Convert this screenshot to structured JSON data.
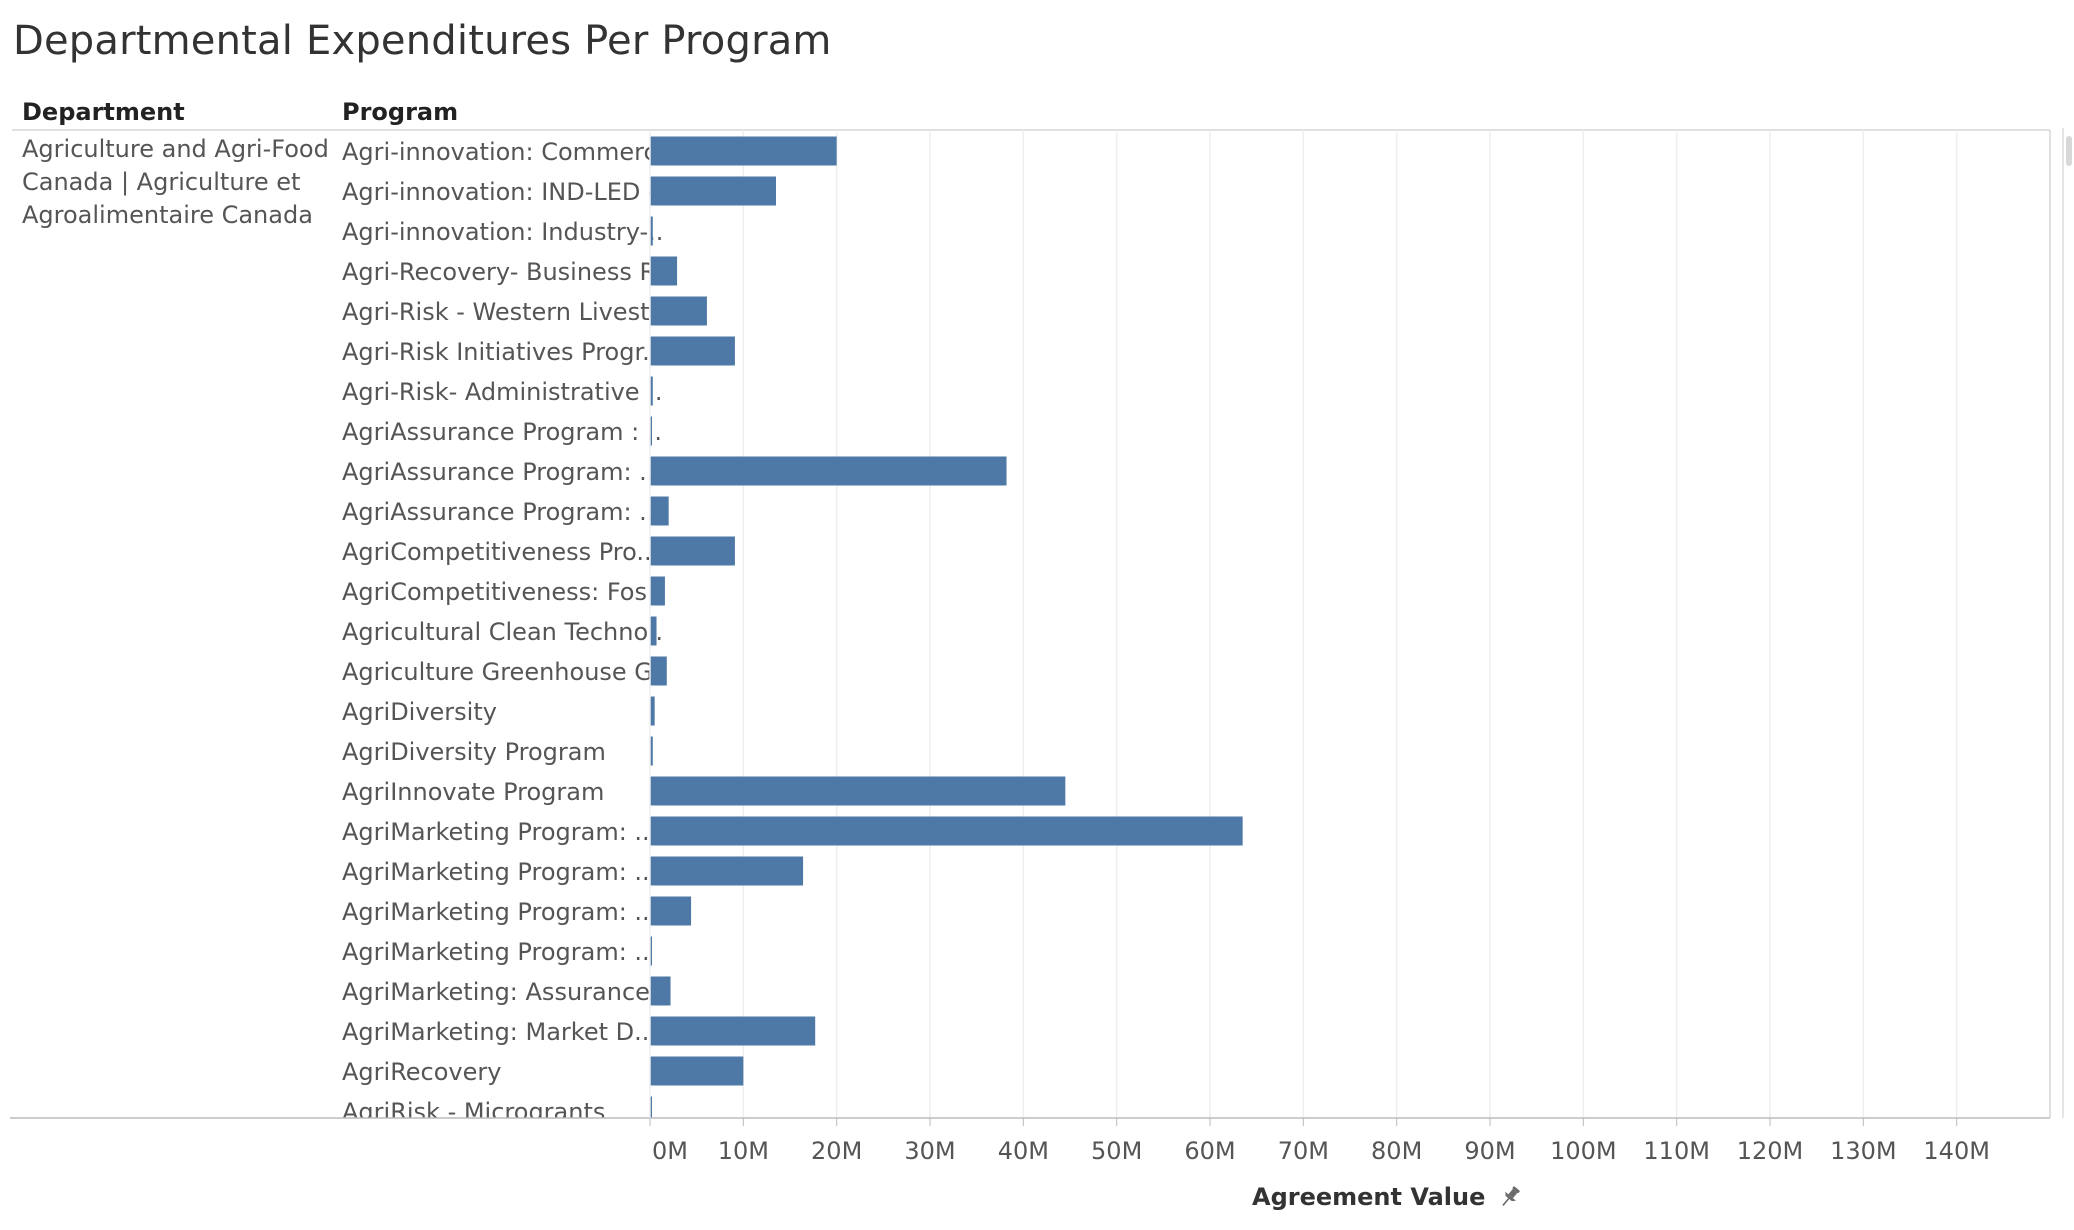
{
  "page": {
    "title": "Departmental Expenditures Per Program",
    "column_headers": {
      "department": "Department",
      "program": "Program"
    },
    "department_label": "Agriculture and Agri-Food Canada | Agriculture et Agroalimentaire Canada",
    "icons": {
      "axis_pin": "pin-icon"
    }
  },
  "colors": {
    "bar": "#4e79a7",
    "gridline": "#eeeeee",
    "axis": "#bbbbbb",
    "text": "#555555",
    "border": "#d5d5d5"
  },
  "chart_data": {
    "type": "bar",
    "orientation": "horizontal",
    "title": "Departmental Expenditures Per Program",
    "xlabel": "Agreement Value",
    "ylabel": "Program",
    "xlim": [
      0,
      150000000
    ],
    "grid": true,
    "x_ticks": [
      "0M",
      "10M",
      "20M",
      "30M",
      "40M",
      "50M",
      "60M",
      "70M",
      "80M",
      "90M",
      "100M",
      "110M",
      "120M",
      "130M",
      "140M"
    ],
    "x_tick_values": [
      0,
      10000000,
      20000000,
      30000000,
      40000000,
      50000000,
      60000000,
      70000000,
      80000000,
      90000000,
      100000000,
      110000000,
      120000000,
      130000000,
      140000000
    ],
    "department": "Agriculture and Agri-Food Canada | Agriculture et Agroalimentaire Canada",
    "categories": [
      "Agri-innovation: Commerc..",
      "Agri-innovation: IND-LED -..",
      "Agri-innovation: Industry-..",
      "Agri-Recovery- Business R..",
      "Agri-Risk - Western Livest..",
      "Agri-Risk Initiatives Progr..",
      "Agri-Risk- Administrative ..",
      "AgriAssurance Program : ..",
      "AgriAssurance Program: ..",
      "AgriAssurance Program: ..",
      "AgriCompetitiveness Pro..",
      "AgriCompetitiveness: Fos..",
      "Agricultural Clean Techno..",
      "Agriculture Greenhouse G..",
      "AgriDiversity",
      "AgriDiversity Program",
      "AgriInnovate Program",
      "AgriMarketing Program: ..",
      "AgriMarketing Program: ..",
      "AgriMarketing Program: ..",
      "AgriMarketing Program: ..",
      "AgriMarketing: Assurance..",
      "AgriMarketing: Market D..",
      "AgriRecovery",
      "AgriRisk - Microgrants"
    ],
    "values": [
      20000000,
      13500000,
      300000,
      2900000,
      6100000,
      9100000,
      300000,
      100000,
      38200000,
      2000000,
      9100000,
      1600000,
      700000,
      1800000,
      500000,
      300000,
      44500000,
      63500000,
      16400000,
      4400000,
      100000,
      2200000,
      17700000,
      10000000,
      100000
    ]
  }
}
